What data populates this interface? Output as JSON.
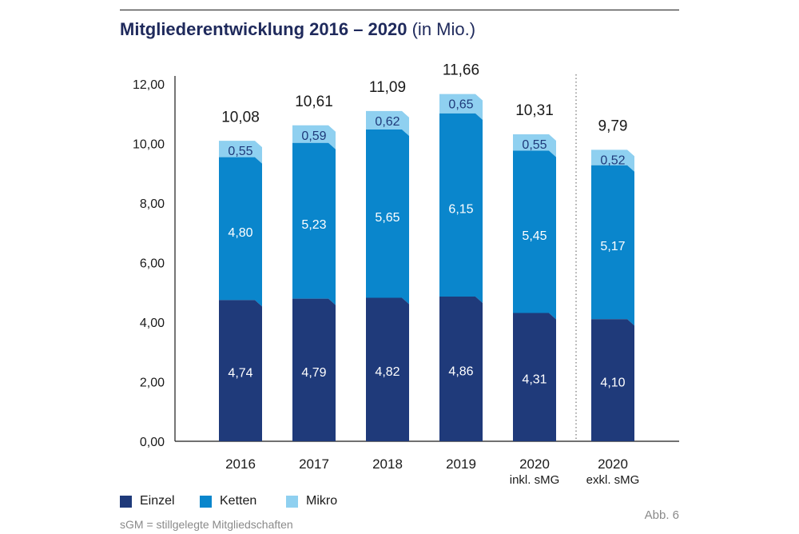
{
  "title": "Mitgliederentwicklung 2016 – 2020",
  "title_unit": "(in Mio.)",
  "legend": [
    {
      "label": "Einzel",
      "color": "#1f3a7a"
    },
    {
      "label": "Ketten",
      "color": "#0a86cc"
    },
    {
      "label": "Mikro",
      "color": "#8fd0f0"
    }
  ],
  "note": "sGM = stillgelegte Mitgliedschaften",
  "figure_ref": "Abb. 6",
  "chart_data": {
    "type": "bar",
    "stacked": true,
    "categories": [
      [
        "2016"
      ],
      [
        "2017"
      ],
      [
        "2018"
      ],
      [
        "2019"
      ],
      [
        "2020",
        "inkl. sMG"
      ],
      [
        "2020",
        "exkl. sMG"
      ]
    ],
    "series": [
      {
        "name": "Einzel",
        "values": [
          4.74,
          4.79,
          4.82,
          4.86,
          4.31,
          4.1
        ],
        "labels": [
          "4,74",
          "4,79",
          "4,82",
          "4,86",
          "4,31",
          "4,10"
        ],
        "color": "#1f3a7a"
      },
      {
        "name": "Ketten",
        "values": [
          4.8,
          5.23,
          5.65,
          6.15,
          5.45,
          5.17
        ],
        "labels": [
          "4,80",
          "5,23",
          "5,65",
          "6,15",
          "5,45",
          "5,17"
        ],
        "color": "#0a86cc"
      },
      {
        "name": "Mikro",
        "values": [
          0.55,
          0.59,
          0.62,
          0.65,
          0.55,
          0.52
        ],
        "labels": [
          "0,55",
          "0,59",
          "0,62",
          "0,65",
          "0,55",
          "0,52"
        ],
        "color": "#8fd0f0"
      }
    ],
    "totals": [
      10.08,
      10.61,
      11.09,
      11.66,
      10.31,
      9.79
    ],
    "total_labels": [
      "10,08",
      "10,61",
      "11,09",
      "11,66",
      "10,31",
      "9,79"
    ],
    "ylim": [
      0,
      12
    ],
    "yticks": [
      0,
      2,
      4,
      6,
      8,
      10,
      12
    ],
    "ytick_labels": [
      "0,00",
      "2,00",
      "4,00",
      "6,00",
      "8,00",
      "10,00",
      "12,00"
    ],
    "separator_after_category": 4,
    "legend_position": "bottom-left"
  }
}
